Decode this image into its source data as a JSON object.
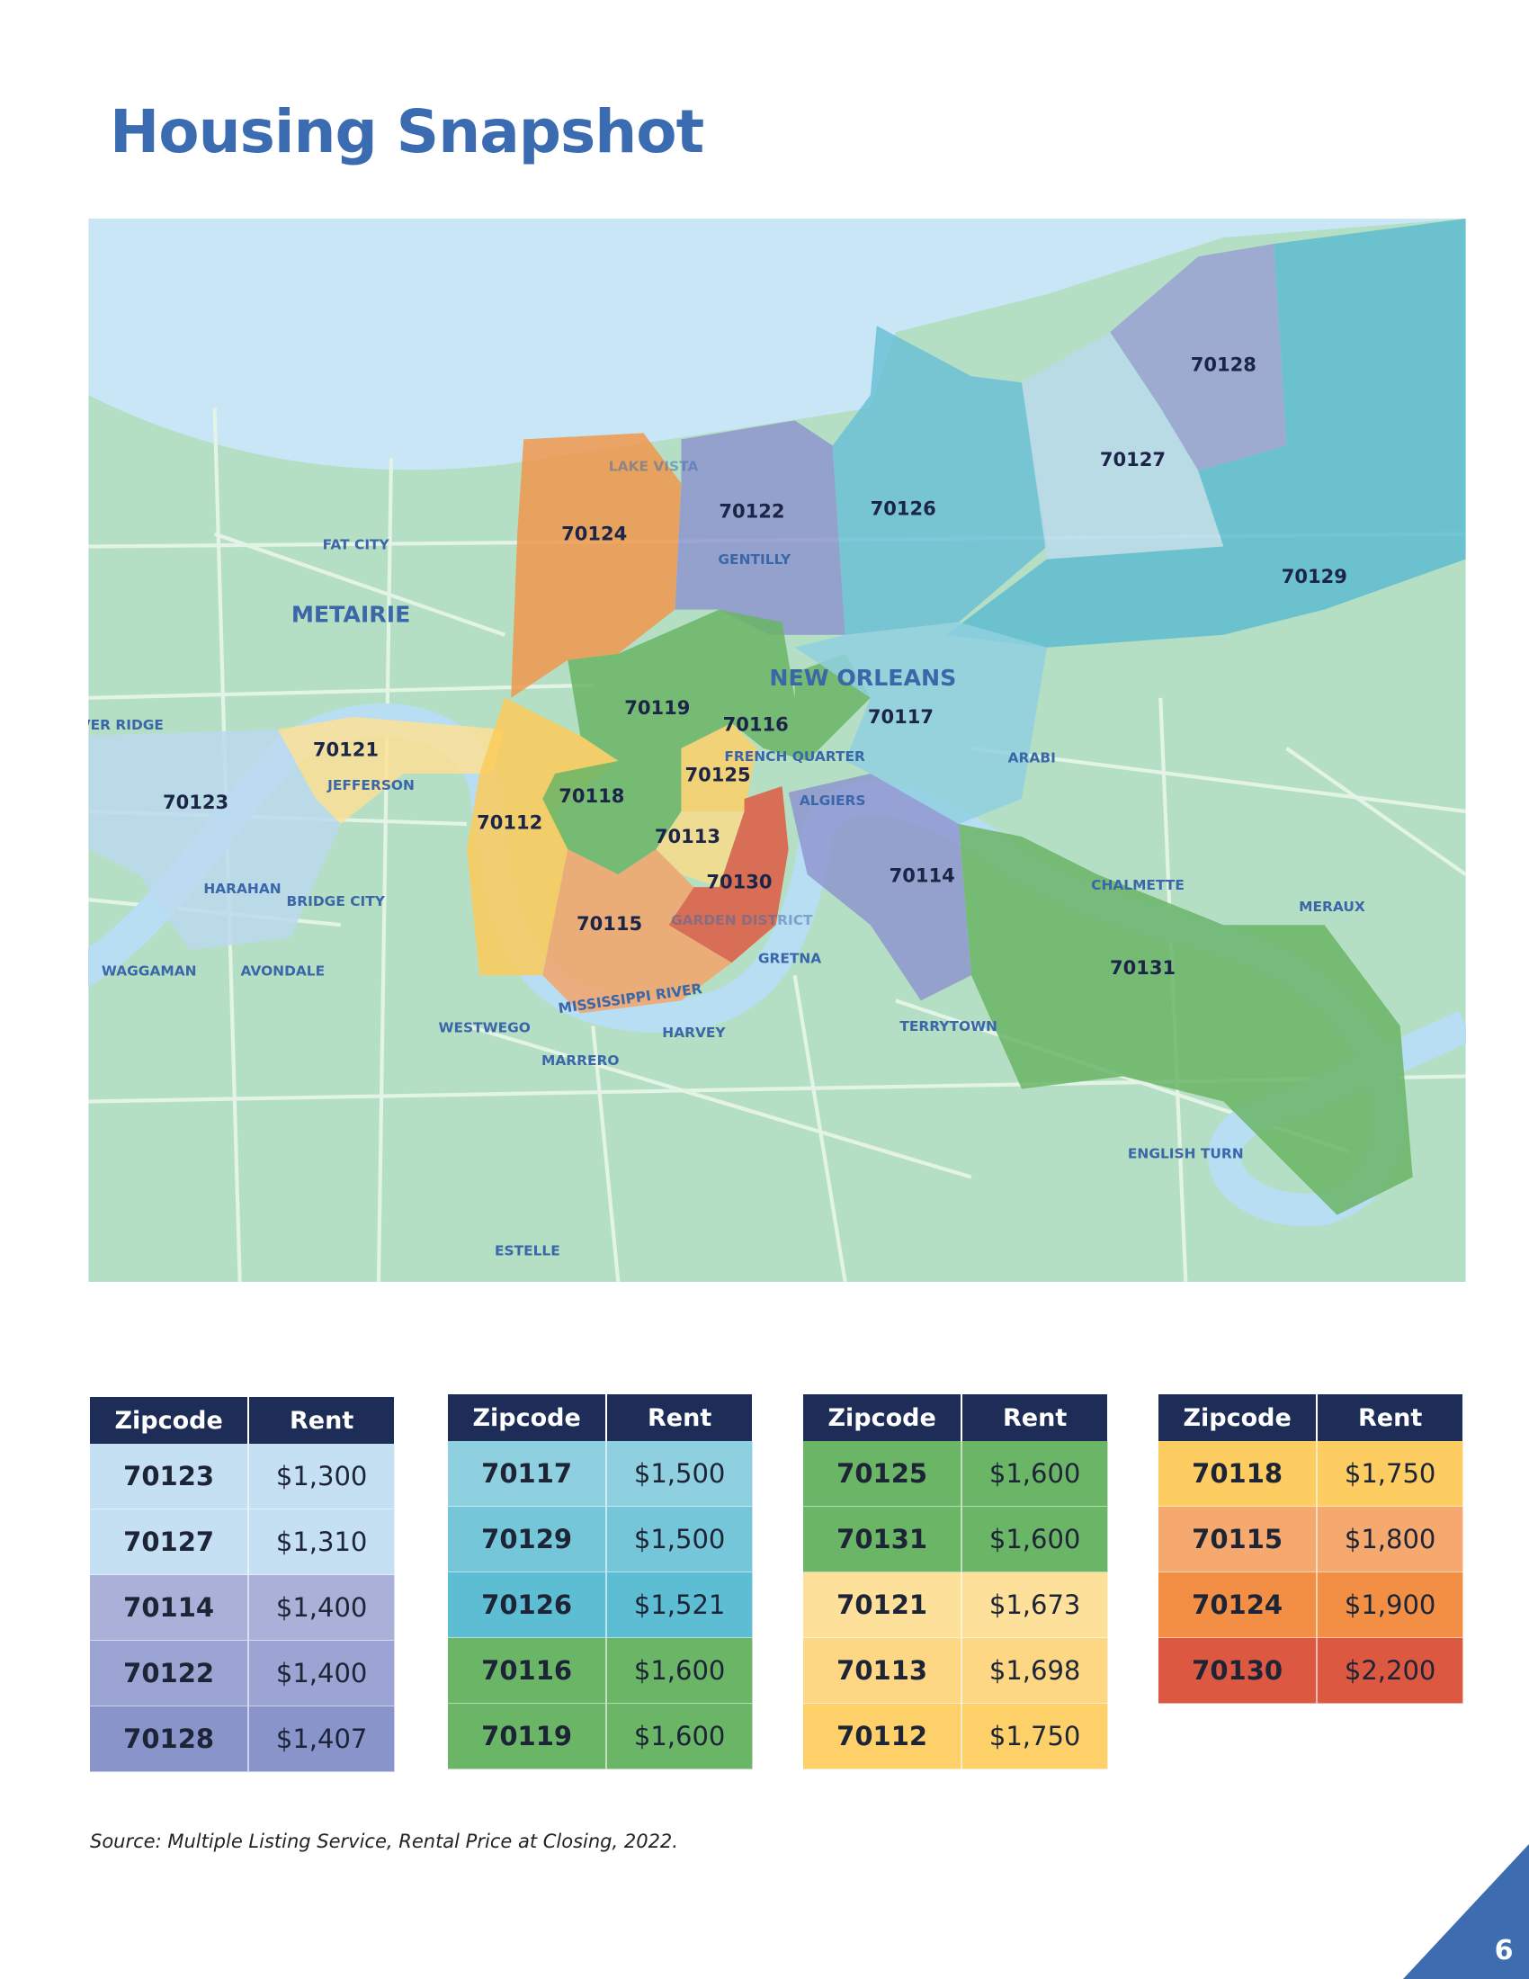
{
  "header": {
    "title": "Housing Snapshot"
  },
  "map": {
    "zips": [
      {
        "label": "70124",
        "color": "#f0984d"
      },
      {
        "label": "70122",
        "color": "#8f97cf"
      },
      {
        "label": "70126",
        "color": "#6cc0d6"
      },
      {
        "label": "70128",
        "color": "#9aa2d2"
      },
      {
        "label": "70127",
        "color": "#b8daec"
      },
      {
        "label": "70129",
        "color": "#5ebdd0"
      },
      {
        "label": "70119",
        "color": "#6ab566"
      },
      {
        "label": "70116",
        "color": "#6ab566"
      },
      {
        "label": "70117",
        "color": "#8fd0e0"
      },
      {
        "label": "70121",
        "color": "#fbe096"
      },
      {
        "label": "70123",
        "color": "#bcd9ef"
      },
      {
        "label": "70118",
        "color": "#fccb5a"
      },
      {
        "label": "70125",
        "color": "#6ab566"
      },
      {
        "label": "70112",
        "color": "#fdd06a"
      },
      {
        "label": "70113",
        "color": "#f8dc8a"
      },
      {
        "label": "70130",
        "color": "#de5b43"
      },
      {
        "label": "70115",
        "color": "#f3a56a"
      },
      {
        "label": "70114",
        "color": "#8f97cf"
      },
      {
        "label": "70131",
        "color": "#6ab566"
      }
    ],
    "places": [
      "FAT CITY",
      "METAIRIE",
      "NEW ORLEANS",
      "FRENCH QUARTER",
      "ALGIERS",
      "ARABI",
      "CHALMETTE",
      "MERAUX",
      "GRETNA",
      "HARVEY",
      "TERRYTOWN",
      "WESTWEGO",
      "MARRERO",
      "WAGGAMAN",
      "AVONDALE",
      "HARAHAN",
      "BRIDGE CITY",
      "JEFFERSON",
      "RIVER RIDGE",
      "GENTILLY",
      "LAKE VISTA",
      "GARDEN DISTRICT",
      "MISSISSIPPI RIVER",
      "ENGLISH TURN",
      "ESTELLE"
    ]
  },
  "tables": [
    {
      "headers": [
        "Zipcode",
        "Rent"
      ],
      "rows": [
        {
          "zip": "70123",
          "rent": "$1,300",
          "color": "#c5dff3"
        },
        {
          "zip": "70127",
          "rent": "$1,310",
          "color": "#c5dff3"
        },
        {
          "zip": "70114",
          "rent": "$1,400",
          "color": "#aab0d8"
        },
        {
          "zip": "70122",
          "rent": "$1,400",
          "color": "#9ba4d3"
        },
        {
          "zip": "70128",
          "rent": "$1,407",
          "color": "#8894ca"
        }
      ]
    },
    {
      "headers": [
        "Zipcode",
        "Rent"
      ],
      "rows": [
        {
          "zip": "70117",
          "rent": "$1,500",
          "color": "#8fd0e0"
        },
        {
          "zip": "70129",
          "rent": "$1,500",
          "color": "#75c6d8"
        },
        {
          "zip": "70126",
          "rent": "$1,521",
          "color": "#5dbdd2"
        },
        {
          "zip": "70116",
          "rent": "$1,600",
          "color": "#6ab566"
        },
        {
          "zip": "70119",
          "rent": "$1,600",
          "color": "#6ab566"
        }
      ]
    },
    {
      "headers": [
        "Zipcode",
        "Rent"
      ],
      "rows": [
        {
          "zip": "70125",
          "rent": "$1,600",
          "color": "#6ab566"
        },
        {
          "zip": "70131",
          "rent": "$1,600",
          "color": "#6ab566"
        },
        {
          "zip": "70121",
          "rent": "$1,673",
          "color": "#fde09a"
        },
        {
          "zip": "70113",
          "rent": "$1,698",
          "color": "#fdd783"
        },
        {
          "zip": "70112",
          "rent": "$1,750",
          "color": "#fdd06a"
        }
      ]
    },
    {
      "headers": [
        "Zipcode",
        "Rent"
      ],
      "rows": [
        {
          "zip": "70118",
          "rent": "$1,750",
          "color": "#fdcd62"
        },
        {
          "zip": "70115",
          "rent": "$1,800",
          "color": "#f6a96f"
        },
        {
          "zip": "70124",
          "rent": "$1,900",
          "color": "#f28f45"
        },
        {
          "zip": "70130",
          "rent": "$2,200",
          "color": "#dd5841"
        }
      ]
    }
  ],
  "footer": {
    "source": "Source: Multiple Listing Service, Rental Price at Closing, 2022.",
    "page_number": "6"
  }
}
